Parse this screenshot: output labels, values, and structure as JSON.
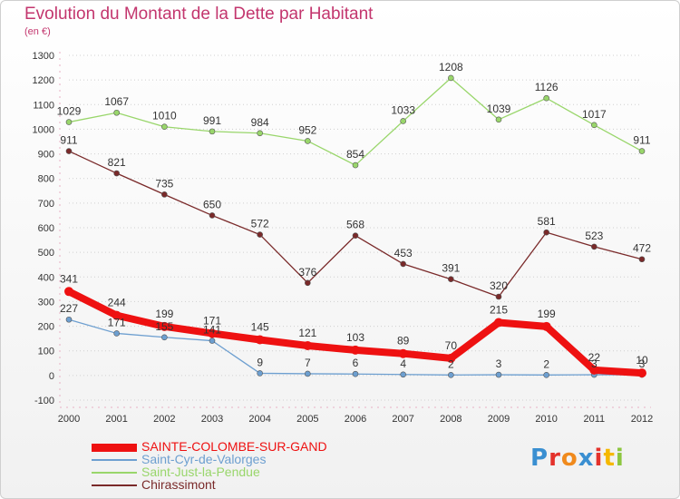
{
  "title": "Evolution du Montant de la Dette par Habitant",
  "subtitle": "(en €)",
  "logo": {
    "text": "Proxiti",
    "letters": [
      {
        "ch": "P",
        "color": "#3a8fd1"
      },
      {
        "ch": "r",
        "color": "#e4322b"
      },
      {
        "ch": "o",
        "color": "#f08a1d"
      },
      {
        "ch": "x",
        "color": "#3a8fd1"
      },
      {
        "ch": "i",
        "color": "#e4322b"
      },
      {
        "ch": "t",
        "color": "#f5b800"
      },
      {
        "ch": "i",
        "color": "#8dc63f"
      }
    ]
  },
  "chart_data": {
    "type": "line",
    "title": "Evolution du Montant de la Dette par Habitant",
    "ylabel": "(en €)",
    "xlabel": "",
    "x": [
      "2000",
      "2001",
      "2002",
      "2003",
      "2004",
      "2005",
      "2006",
      "2007",
      "2008",
      "2009",
      "2010",
      "2011",
      "2012"
    ],
    "ylim": [
      -100,
      1300
    ],
    "yticks": [
      -100,
      0,
      100,
      200,
      300,
      400,
      500,
      600,
      700,
      800,
      900,
      1000,
      1100,
      1200,
      1300
    ],
    "grid": "horizontal dotted",
    "legend_position": "bottom-left",
    "series": [
      {
        "name": "SAINTE-COLOMBE-SUR-GAND",
        "color": "#ee1111",
        "values": [
          341,
          244,
          199,
          171,
          145,
          121,
          103,
          89,
          70,
          215,
          199,
          22,
          10
        ]
      },
      {
        "name": "Saint-Cyr-de-Valorges",
        "color": "#6d9fd0",
        "values": [
          227,
          171,
          155,
          141,
          9,
          7,
          6,
          4,
          2,
          3,
          2,
          3,
          3
        ]
      },
      {
        "name": "Saint-Just-la-Pendue",
        "color": "#99d66b",
        "values": [
          1029,
          1067,
          1010,
          991,
          984,
          952,
          854,
          1033,
          1208,
          1039,
          1126,
          1017,
          911
        ]
      },
      {
        "name": "Chirassimont",
        "color": "#7a2a2a",
        "values": [
          911,
          821,
          735,
          650,
          572,
          376,
          568,
          453,
          391,
          320,
          581,
          523,
          472
        ]
      }
    ]
  }
}
